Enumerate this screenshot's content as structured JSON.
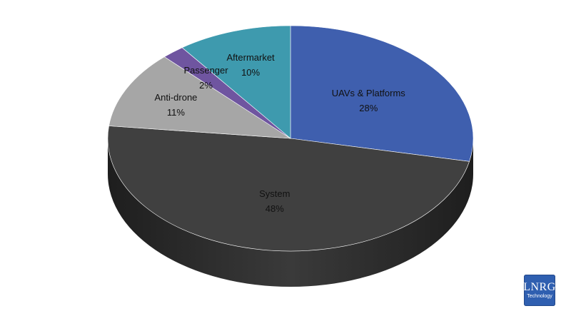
{
  "chart_data": {
    "type": "pie",
    "title": "",
    "style": "3d",
    "categories": [
      "UAVs & Platforms",
      "System",
      "Anti-drone",
      "Passenger",
      "Aftermarket"
    ],
    "values": [
      28,
      48,
      11,
      2,
      10
    ],
    "value_labels": [
      "28%",
      "48%",
      "11%",
      "2%",
      "10%"
    ],
    "colors": [
      "#3f5fae",
      "#404040",
      "#a6a6a6",
      "#6f55a0",
      "#3e9aae"
    ],
    "side_color": "#2a2a2a",
    "legend": "none"
  },
  "logo": {
    "main": "LNRG",
    "sub": "Technology"
  }
}
